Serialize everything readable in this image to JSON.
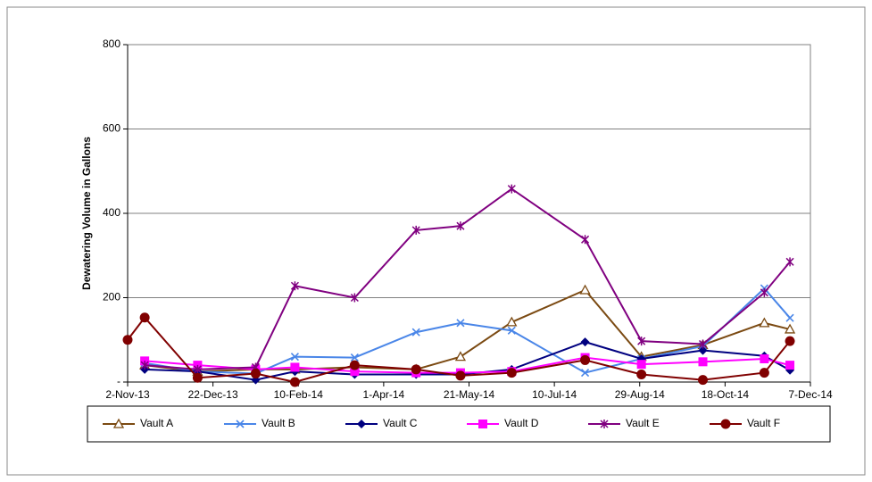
{
  "chart_data": {
    "type": "line",
    "y_label": "Dewatering Volume in Gallons",
    "x": [
      "2013-11-02",
      "2013-11-12",
      "2013-12-13",
      "2014-01-16",
      "2014-02-08",
      "2014-03-15",
      "2014-04-20",
      "2014-05-16",
      "2014-06-15",
      "2014-07-28",
      "2014-08-30",
      "2014-10-05",
      "2014-11-10",
      "2014-11-25"
    ],
    "xlim": [
      "2013-11-02",
      "2014-12-07"
    ],
    "xticks": [
      {
        "value": "2013-11-02",
        "label": "2-Nov-13"
      },
      {
        "value": "2013-12-22",
        "label": "22-Dec-13"
      },
      {
        "value": "2014-02-10",
        "label": "10-Feb-14"
      },
      {
        "value": "2014-04-01",
        "label": "1-Apr-14"
      },
      {
        "value": "2014-05-21",
        "label": "21-May-14"
      },
      {
        "value": "2014-07-10",
        "label": "10-Jul-14"
      },
      {
        "value": "2014-08-29",
        "label": "29-Aug-14"
      },
      {
        "value": "2014-10-18",
        "label": "18-Oct-14"
      },
      {
        "value": "2014-12-07",
        "label": "7-Dec-14"
      }
    ],
    "ylim": [
      0,
      800
    ],
    "yticks": [
      {
        "value": 0,
        "label": "-"
      },
      200,
      400,
      600,
      800
    ],
    "grid": true,
    "legend": "bottom",
    "series": [
      {
        "name": "Vault A",
        "color": "#7b4a12",
        "marker": "triangle",
        "values": [
          null,
          40,
          25,
          30,
          30,
          35,
          30,
          60,
          142,
          218,
          60,
          88,
          140,
          125
        ]
      },
      {
        "name": "Vault B",
        "color": "#4a86e8",
        "marker": "x",
        "values": [
          null,
          45,
          25,
          20,
          60,
          58,
          118,
          140,
          122,
          22,
          55,
          85,
          222,
          152
        ]
      },
      {
        "name": "Vault C",
        "color": "#000080",
        "marker": "diamond",
        "values": [
          null,
          30,
          25,
          5,
          25,
          18,
          18,
          18,
          30,
          95,
          55,
          75,
          62,
          28
        ]
      },
      {
        "name": "Vault D",
        "color": "#ff00ff",
        "marker": "square",
        "values": [
          null,
          50,
          40,
          30,
          35,
          25,
          22,
          22,
          25,
          58,
          42,
          48,
          55,
          40
        ]
      },
      {
        "name": "Vault E",
        "color": "#800080",
        "marker": "star",
        "values": [
          null,
          40,
          30,
          35,
          228,
          200,
          360,
          370,
          458,
          338,
          97,
          90,
          212,
          285
        ]
      },
      {
        "name": "Vault F",
        "color": "#800000",
        "marker": "circle",
        "values": [
          100,
          153,
          10,
          20,
          0,
          40,
          30,
          15,
          22,
          52,
          18,
          5,
          22,
          97
        ]
      }
    ]
  }
}
